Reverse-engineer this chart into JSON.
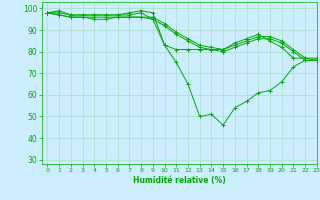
{
  "title": "",
  "xlabel": "Humidité relative (%)",
  "ylabel": "",
  "bg_color": "#cceeff",
  "grid_color": "#aaddcc",
  "line_color": "#00aa00",
  "marker_color": "#00aa00",
  "xlim": [
    -0.5,
    23
  ],
  "ylim": [
    28,
    103
  ],
  "yticks": [
    30,
    40,
    50,
    60,
    70,
    80,
    90,
    100
  ],
  "xticks": [
    0,
    1,
    2,
    3,
    4,
    5,
    6,
    7,
    8,
    9,
    10,
    11,
    12,
    13,
    14,
    15,
    16,
    17,
    18,
    19,
    20,
    21,
    22,
    23
  ],
  "lines": [
    {
      "x": [
        0,
        1,
        2,
        3,
        4,
        5,
        6,
        7,
        8,
        9,
        10,
        11,
        12,
        13,
        14,
        15,
        16,
        17,
        18,
        19,
        20,
        21,
        22,
        23
      ],
      "y": [
        98,
        99,
        97,
        97,
        97,
        97,
        97,
        98,
        99,
        98,
        83,
        75,
        65,
        50,
        51,
        46,
        54,
        57,
        61,
        62,
        66,
        73,
        76,
        76
      ],
      "marker": "+"
    },
    {
      "x": [
        0,
        1,
        2,
        3,
        4,
        5,
        6,
        7,
        8,
        9,
        10,
        11,
        12,
        13,
        14,
        15,
        16,
        17,
        18,
        19,
        20,
        21,
        22,
        23
      ],
      "y": [
        98,
        98,
        97,
        97,
        97,
        97,
        97,
        97,
        98,
        95,
        83,
        81,
        81,
        81,
        81,
        81,
        84,
        86,
        88,
        85,
        82,
        77,
        77,
        77
      ],
      "marker": "+"
    },
    {
      "x": [
        0,
        1,
        2,
        3,
        4,
        5,
        6,
        7,
        8,
        9,
        10,
        11,
        12,
        13,
        14,
        15,
        16,
        17,
        18,
        19,
        20,
        21,
        22,
        23
      ],
      "y": [
        98,
        97,
        96,
        96,
        96,
        96,
        96,
        96,
        96,
        96,
        93,
        89,
        86,
        83,
        82,
        81,
        83,
        85,
        87,
        87,
        85,
        81,
        77,
        76
      ],
      "marker": "+"
    },
    {
      "x": [
        0,
        1,
        2,
        3,
        4,
        5,
        6,
        7,
        8,
        9,
        10,
        11,
        12,
        13,
        14,
        15,
        16,
        17,
        18,
        19,
        20,
        21,
        22,
        23
      ],
      "y": [
        98,
        97,
        96,
        96,
        95,
        95,
        96,
        96,
        96,
        95,
        92,
        88,
        85,
        82,
        81,
        80,
        82,
        84,
        86,
        86,
        84,
        80,
        76,
        76
      ],
      "marker": "+"
    }
  ]
}
